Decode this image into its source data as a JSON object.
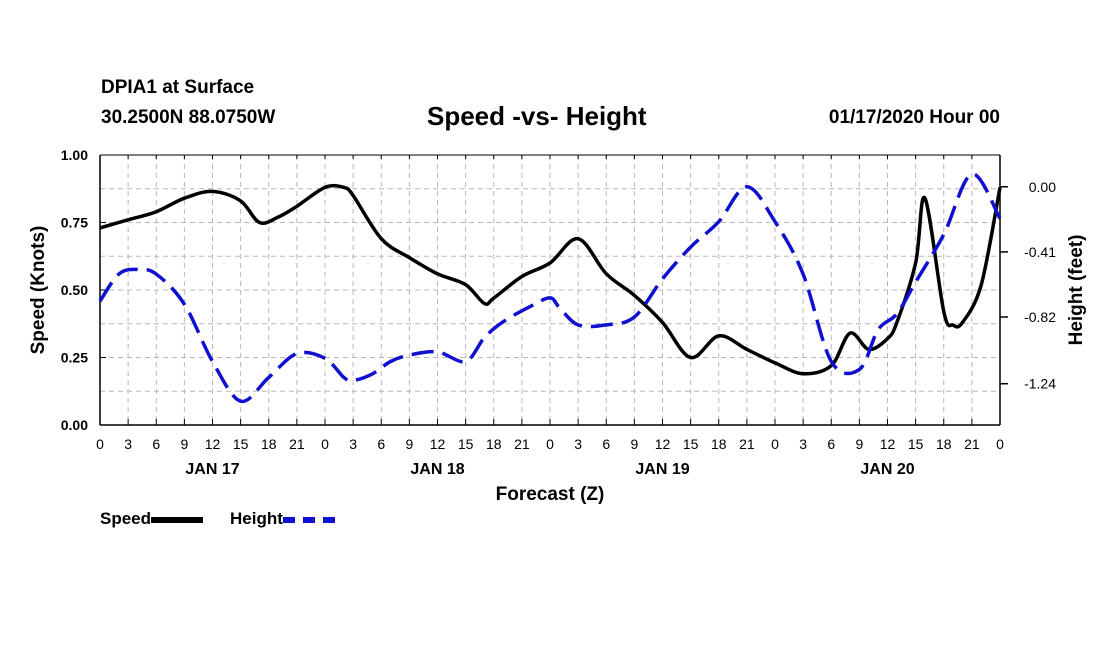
{
  "header": {
    "station": "DPIA1 at Surface",
    "coords": "30.2500N 88.0750W",
    "title": "Speed -vs- Height",
    "timestamp": "01/17/2020 Hour 00"
  },
  "legend": {
    "speed_label": "Speed",
    "height_label": "Height"
  },
  "chart_data": {
    "type": "line",
    "title": "Speed -vs- Height",
    "xlabel": "Forecast (Z)",
    "ylabel": "Speed (Knots)",
    "y2label": "Height (feet)",
    "xlim": [
      0,
      96
    ],
    "ylim": [
      0,
      1.0
    ],
    "y2lim": [
      -1.5,
      0.2
    ],
    "x_ticks": [
      0,
      3,
      6,
      9,
      12,
      15,
      18,
      21,
      24,
      27,
      30,
      33,
      36,
      39,
      42,
      45,
      48,
      51,
      54,
      57,
      60,
      63,
      66,
      69,
      72,
      75,
      78,
      81,
      84,
      87,
      90,
      93,
      96
    ],
    "x_tick_labels": [
      "0",
      "3",
      "6",
      "9",
      "12",
      "15",
      "18",
      "21",
      "0",
      "3",
      "6",
      "9",
      "12",
      "15",
      "18",
      "21",
      "0",
      "3",
      "6",
      "9",
      "12",
      "15",
      "18",
      "21",
      "0",
      "3",
      "6",
      "9",
      "12",
      "15",
      "18",
      "21",
      "0"
    ],
    "day_labels": [
      {
        "x": 12,
        "label": "JAN 17"
      },
      {
        "x": 36,
        "label": "JAN 18"
      },
      {
        "x": 60,
        "label": "JAN 19"
      },
      {
        "x": 84,
        "label": "JAN 20"
      }
    ],
    "y_ticks": [
      0,
      0.25,
      0.5,
      0.75,
      1.0
    ],
    "y_tick_labels": [
      "0.00",
      "0.25",
      "0.50",
      "0.75",
      "1.00"
    ],
    "y2_ticks": [
      0,
      -0.41,
      -0.82,
      -1.24
    ],
    "y2_tick_labels": [
      "0.00",
      "-0.41",
      "-0.82",
      "-1.24"
    ],
    "grid": true,
    "legend_position": "bottom-left",
    "series": [
      {
        "name": "Speed",
        "axis": "left",
        "color": "#000000",
        "style": "solid",
        "x": [
          0,
          3,
          6,
          9,
          12,
          15,
          17,
          19,
          21,
          24,
          26,
          27,
          30,
          33,
          36,
          39,
          41,
          42,
          45,
          48,
          51,
          54,
          57,
          60,
          63,
          66,
          69,
          72,
          75,
          78,
          80,
          82,
          84,
          85,
          87,
          88,
          90,
          91,
          92,
          94,
          96
        ],
        "y": [
          0.73,
          0.76,
          0.79,
          0.84,
          0.865,
          0.83,
          0.75,
          0.77,
          0.81,
          0.88,
          0.88,
          0.85,
          0.69,
          0.62,
          0.56,
          0.52,
          0.45,
          0.47,
          0.55,
          0.6,
          0.69,
          0.56,
          0.48,
          0.38,
          0.25,
          0.33,
          0.28,
          0.23,
          0.19,
          0.22,
          0.34,
          0.28,
          0.32,
          0.38,
          0.6,
          0.84,
          0.42,
          0.37,
          0.38,
          0.52,
          0.88
        ]
      },
      {
        "name": "Height",
        "axis": "right",
        "color": "#1010d0",
        "style": "dashed",
        "x": [
          0,
          2,
          4,
          6,
          9,
          12,
          15,
          18,
          21,
          24,
          26,
          27,
          29,
          31,
          33,
          36,
          39,
          41,
          43,
          46,
          48,
          49,
          51,
          54,
          57,
          60,
          63,
          66,
          69,
          72,
          75,
          78,
          81,
          83,
          85,
          87,
          90,
          93,
          96
        ],
        "y": [
          -0.72,
          -0.55,
          -0.52,
          -0.55,
          -0.74,
          -1.1,
          -1.35,
          -1.2,
          -1.05,
          -1.08,
          -1.2,
          -1.22,
          -1.18,
          -1.1,
          -1.06,
          -1.04,
          -1.1,
          -0.95,
          -0.85,
          -0.75,
          -0.7,
          -0.76,
          -0.87,
          -0.87,
          -0.82,
          -0.58,
          -0.38,
          -0.22,
          0.0,
          -0.22,
          -0.55,
          -1.1,
          -1.15,
          -0.9,
          -0.8,
          -0.6,
          -0.3,
          0.08,
          -0.2
        ]
      }
    ]
  }
}
